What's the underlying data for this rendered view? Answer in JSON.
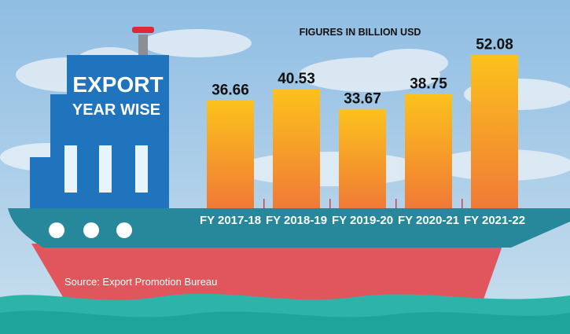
{
  "chart_data": {
    "type": "bar",
    "title": "EXPORT",
    "subtitle": "YEAR WISE",
    "note": "FIGURES IN BILLION USD",
    "source": "Source: Export Promotion Bureau",
    "categories": [
      "FY 2017-18",
      "FY 2018-19",
      "FY 2019-20",
      "FY 2020-21",
      "FY 2021-22"
    ],
    "values": [
      36.66,
      40.53,
      33.67,
      38.75,
      52.08
    ],
    "value_labels": [
      "36.66",
      "40.53",
      "33.67",
      "38.75",
      "52.08"
    ],
    "xlabel": "",
    "ylabel": "",
    "ylim": [
      0,
      55
    ],
    "grid": false,
    "legend": "none"
  },
  "colors": {
    "sky": "#9cc4e4",
    "hull_top": "#26889a",
    "hull_bottom": "#e0565c",
    "cabin": "#1f74bd",
    "bar_top": "#fcc21c",
    "bar_bottom": "#f07a36",
    "sea": "#2eb3a8"
  }
}
